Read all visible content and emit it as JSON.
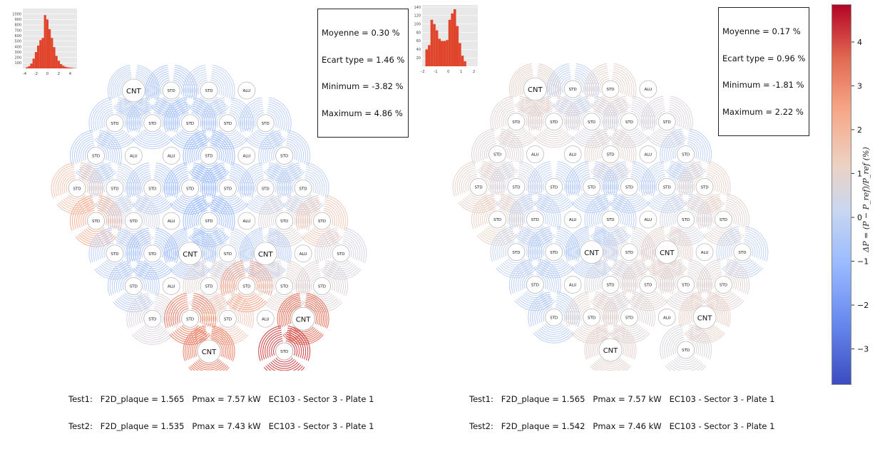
{
  "panels": [
    {
      "stats": {
        "mean": "Moyenne = 0.30 %",
        "std": "Ecart type = 1.46 %",
        "min": "Minimum = -3.82 %",
        "max": "Maximum = 4.86 %"
      },
      "footer": {
        "line1": "Test1:   F2D_plaque = 1.565   Pmax = 7.57 kW   EC103 - Sector 3 - Plate 1",
        "line2": "Test2:   F2D_plaque = 1.535   Pmax = 7.43 kW   EC103 - Sector 3 - Plate 1"
      },
      "histogram": {
        "y_ticks": [
          "100",
          "200",
          "300",
          "400",
          "500",
          "600",
          "700",
          "800",
          "900",
          "1000"
        ],
        "x_ticks": [
          "-4",
          "-2",
          "0",
          "2",
          "4"
        ],
        "bin_start": -3.8,
        "bin_width": 0.4,
        "counts": [
          20,
          40,
          90,
          180,
          300,
          420,
          520,
          560,
          980,
          900,
          720,
          560,
          390,
          230,
          140,
          80,
          50,
          30,
          20,
          15,
          10,
          5
        ],
        "ylim": [
          0,
          1100
        ],
        "xlim": [
          -4.3,
          5.2
        ]
      },
      "assemblies": [
        {
          "label": "CNT",
          "mean": -0.3
        },
        {
          "label": "STD",
          "mean": -0.8
        },
        {
          "label": "STD",
          "mean": -0.3
        },
        {
          "label": "ALU",
          "mean": 0
        },
        {
          "label": "STD",
          "mean": -0.5
        },
        {
          "label": "STD",
          "mean": -0.6
        },
        {
          "label": "STD",
          "mean": -0.9
        },
        {
          "label": "STD",
          "mean": -0.4
        },
        {
          "label": "STD",
          "mean": -0.5
        },
        {
          "label": "STD",
          "mean": -0.6
        },
        {
          "label": "ALU",
          "mean": 0
        },
        {
          "label": "ALU",
          "mean": 0
        },
        {
          "label": "STD",
          "mean": -1.2
        },
        {
          "label": "ALU",
          "mean": 0
        },
        {
          "label": "STD",
          "mean": -0.5
        },
        {
          "label": "STD",
          "mean": 1.6
        },
        {
          "label": "STD",
          "mean": -0.2
        },
        {
          "label": "STD",
          "mean": -0.7
        },
        {
          "label": "STD",
          "mean": -1.1
        },
        {
          "label": "STD",
          "mean": -0.8
        },
        {
          "label": "STD",
          "mean": -0.4
        },
        {
          "label": "STD",
          "mean": -0.3
        },
        {
          "label": "STD",
          "mean": 2.2
        },
        {
          "label": "STD",
          "mean": 0.2
        },
        {
          "label": "ALU",
          "mean": 0
        },
        {
          "label": "STD",
          "mean": -1.3
        },
        {
          "label": "ALU",
          "mean": 0
        },
        {
          "label": "STD",
          "mean": 0.6
        },
        {
          "label": "STD",
          "mean": 1.4
        },
        {
          "label": "STD",
          "mean": -0.5
        },
        {
          "label": "STD",
          "mean": -1.0
        },
        {
          "label": "CNT",
          "mean": -0.8
        },
        {
          "label": "STD",
          "mean": -0.2
        },
        {
          "label": "CNT",
          "mean": -0.6
        },
        {
          "label": "ALU",
          "mean": 0
        },
        {
          "label": "STD",
          "mean": 0.3
        },
        {
          "label": "STD",
          "mean": -0.6
        },
        {
          "label": "ALU",
          "mean": 0
        },
        {
          "label": "STD",
          "mean": 0.8
        },
        {
          "label": "STD",
          "mean": 2.6
        },
        {
          "label": "STD",
          "mean": 0.8
        },
        {
          "label": "STD",
          "mean": 0.6
        },
        {
          "label": "STD",
          "mean": 0.5
        },
        {
          "label": "STD",
          "mean": 3.2
        },
        {
          "label": "STD",
          "mean": 1.4
        },
        {
          "label": "ALU",
          "mean": 0
        },
        {
          "label": "CNT",
          "mean": 3.6
        },
        {
          "label": "CNT",
          "mean": 3.2
        },
        {
          "label": "STD",
          "mean": 4.2
        }
      ]
    },
    {
      "stats": {
        "mean": "Moyenne = 0.17 %",
        "std": "Ecart type = 0.96 %",
        "min": "Minimum = -1.81 %",
        "max": "Maximum = 2.22 %"
      },
      "footer": {
        "line1": "Test1:   F2D_plaque = 1.565   Pmax = 7.57 kW   EC103 - Sector 3 - Plate 1",
        "line2": "Test2:   F2D_plaque = 1.542   Pmax = 7.46 kW   EC103 - Sector 3 - Plate 1"
      },
      "histogram": {
        "y_ticks": [
          "20",
          "40",
          "60",
          "80",
          "100",
          "120",
          "140"
        ],
        "x_ticks": [
          "-2",
          "-1",
          "0",
          "1",
          "2"
        ],
        "bin_start": -1.8,
        "bin_width": 0.2,
        "counts": [
          40,
          50,
          110,
          100,
          85,
          65,
          60,
          60,
          62,
          110,
          125,
          135,
          95,
          55,
          25,
          12
        ],
        "ylim": [
          0,
          145
        ],
        "xlim": [
          -2.05,
          2.3
        ]
      },
      "assemblies": [
        {
          "label": "CNT",
          "mean": 0.9
        },
        {
          "label": "STD",
          "mean": -0.4
        },
        {
          "label": "STD",
          "mean": 0.9
        },
        {
          "label": "ALU",
          "mean": 0
        },
        {
          "label": "STD",
          "mean": 0.7
        },
        {
          "label": "STD",
          "mean": 0.7
        },
        {
          "label": "STD",
          "mean": 0.3
        },
        {
          "label": "STD",
          "mean": 0.3
        },
        {
          "label": "STD",
          "mean": 0.5
        },
        {
          "label": "STD",
          "mean": 0.6
        },
        {
          "label": "ALU",
          "mean": 0
        },
        {
          "label": "ALU",
          "mean": 0
        },
        {
          "label": "STD",
          "mean": 0.8
        },
        {
          "label": "ALU",
          "mean": 0
        },
        {
          "label": "STD",
          "mean": -0.4
        },
        {
          "label": "STD",
          "mean": 0.9
        },
        {
          "label": "STD",
          "mean": 0.2
        },
        {
          "label": "STD",
          "mean": -0.4
        },
        {
          "label": "STD",
          "mean": -0.6
        },
        {
          "label": "STD",
          "mean": -0.5
        },
        {
          "label": "STD",
          "mean": -0.3
        },
        {
          "label": "STD",
          "mean": 1.0
        },
        {
          "label": "STD",
          "mean": 1.1
        },
        {
          "label": "STD",
          "mean": -0.3
        },
        {
          "label": "ALU",
          "mean": 0
        },
        {
          "label": "STD",
          "mean": -0.5
        },
        {
          "label": "ALU",
          "mean": 0
        },
        {
          "label": "STD",
          "mean": 0.2
        },
        {
          "label": "STD",
          "mean": 0.8
        },
        {
          "label": "STD",
          "mean": -0.2
        },
        {
          "label": "STD",
          "mean": -0.6
        },
        {
          "label": "CNT",
          "mean": -0.6
        },
        {
          "label": "STD",
          "mean": 0.4
        },
        {
          "label": "CNT",
          "mean": 0.9
        },
        {
          "label": "ALU",
          "mean": 0
        },
        {
          "label": "STD",
          "mean": -0.3
        },
        {
          "label": "STD",
          "mean": -0.5
        },
        {
          "label": "ALU",
          "mean": 0
        },
        {
          "label": "STD",
          "mean": 0.4
        },
        {
          "label": "STD",
          "mean": 0.8
        },
        {
          "label": "STD",
          "mean": 0.6
        },
        {
          "label": "STD",
          "mean": 0.7
        },
        {
          "label": "STD",
          "mean": -0.6
        },
        {
          "label": "STD",
          "mean": 0.9
        },
        {
          "label": "STD",
          "mean": 0.6
        },
        {
          "label": "ALU",
          "mean": 0
        },
        {
          "label": "CNT",
          "mean": 1.0
        },
        {
          "label": "CNT",
          "mean": 0.8
        },
        {
          "label": "STD",
          "mean": 0.4
        }
      ]
    }
  ],
  "colorbar": {
    "ticks": [
      "4",
      "3",
      "2",
      "1",
      "0",
      "−1",
      "−2",
      "−3"
    ],
    "tick_values": [
      4,
      3,
      2,
      1,
      0,
      -1,
      -2,
      -3
    ],
    "range": [
      -3.82,
      4.86
    ],
    "label": "ΔP = (P − P_ref)/P_ref (%)",
    "colors": [
      "#3b4cc0",
      "#6788ee",
      "#9abbff",
      "#c9d7f0",
      "#edd1c2",
      "#f7a889",
      "#e26952",
      "#b40426"
    ]
  },
  "chart_data": [
    {
      "type": "heatmap",
      "title": "",
      "stats": {
        "mean": 0.3,
        "std": 1.46,
        "min": -3.82,
        "max": 4.86,
        "unit": "%"
      },
      "test1": {
        "F2D_plaque": 1.565,
        "Pmax_kW": 7.57,
        "id": "EC103 - Sector 3 - Plate 1"
      },
      "test2": {
        "F2D_plaque": 1.535,
        "Pmax_kW": 7.43,
        "id": "EC103 - Sector 3 - Plate 1"
      },
      "colorbar_range": [
        -3.82,
        4.86
      ]
    },
    {
      "type": "bar",
      "title": "",
      "x_bin_start": -3.8,
      "x_bin_width": 0.4,
      "values": [
        20,
        40,
        90,
        180,
        300,
        420,
        520,
        560,
        980,
        900,
        720,
        560,
        390,
        230,
        140,
        80,
        50,
        30,
        20,
        15,
        10,
        5
      ],
      "xlim": [
        -4.3,
        5.2
      ],
      "ylim": [
        0,
        1100
      ]
    },
    {
      "type": "heatmap",
      "title": "",
      "stats": {
        "mean": 0.17,
        "std": 0.96,
        "min": -1.81,
        "max": 2.22,
        "unit": "%"
      },
      "test1": {
        "F2D_plaque": 1.565,
        "Pmax_kW": 7.57,
        "id": "EC103 - Sector 3 - Plate 1"
      },
      "test2": {
        "F2D_plaque": 1.542,
        "Pmax_kW": 7.46,
        "id": "EC103 - Sector 3 - Plate 1"
      },
      "colorbar_range": [
        -3.82,
        4.86
      ]
    },
    {
      "type": "bar",
      "title": "",
      "x_bin_start": -1.8,
      "x_bin_width": 0.2,
      "values": [
        40,
        50,
        110,
        100,
        85,
        65,
        60,
        60,
        62,
        110,
        125,
        135,
        95,
        55,
        25,
        12
      ],
      "xlim": [
        -2.05,
        2.3
      ],
      "ylim": [
        0,
        145
      ]
    }
  ]
}
